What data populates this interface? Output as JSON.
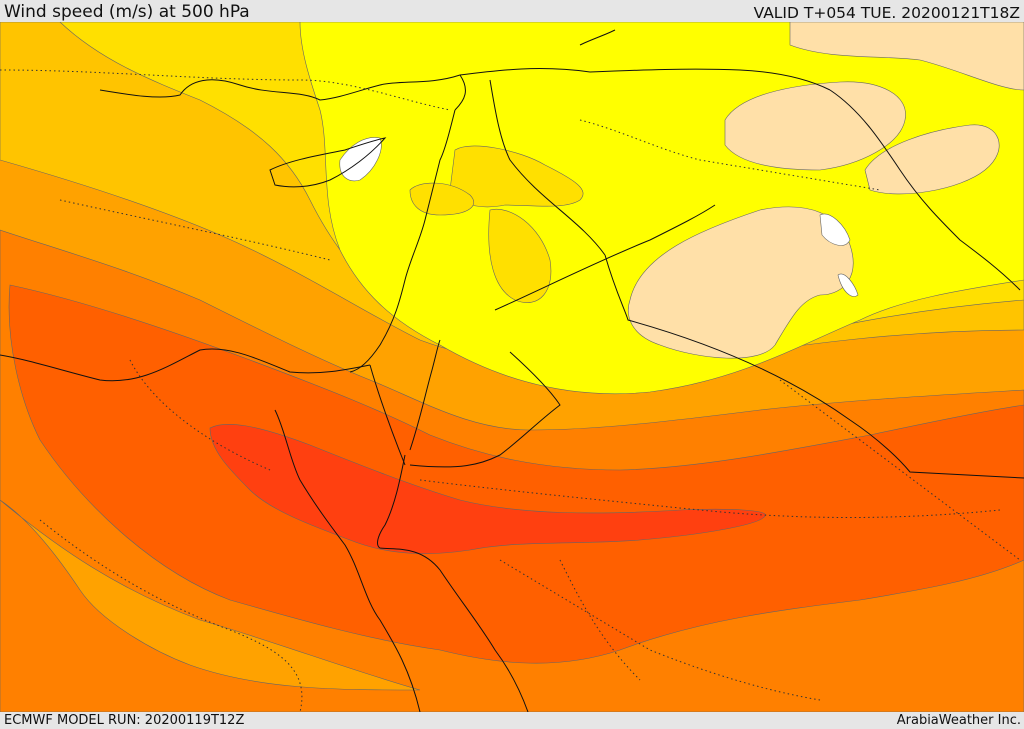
{
  "header": {
    "title": "Wind speed (m/s) at 500 hPa",
    "valid_time": "VALID T+054 TUE. 20200121T18Z"
  },
  "footer": {
    "model_run": "ECMWF MODEL RUN: 20200119T12Z",
    "credit": "ArabiaWeather Inc."
  },
  "map": {
    "variable": "wind-speed",
    "level": "500 hPa",
    "palette": {
      "lowest": "#ffffff",
      "very_low": "#ffe0a8",
      "low": "#ffff00",
      "low_mid": "#ffe000",
      "mid": "#ffc400",
      "mid_high": "#ffa200",
      "high": "#ff8000",
      "very_high": "#ff6000",
      "max": "#ff4010"
    },
    "border_color": "#111111",
    "contour_color": "#555555"
  }
}
